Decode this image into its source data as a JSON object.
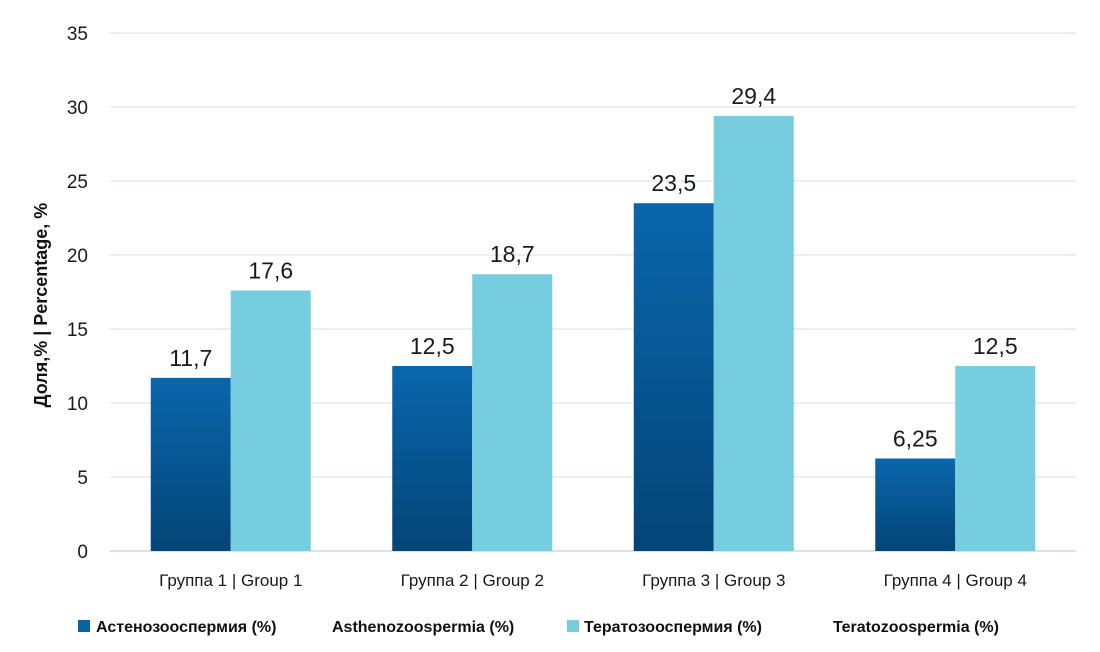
{
  "chart_data": {
    "type": "bar",
    "categories": [
      "Группа 1 | Group 1",
      "Группа 2 | Group 2",
      "Группа 3 | Group 3",
      "Группа 4 | Group 4"
    ],
    "series": [
      {
        "name": "Астенозооспермия (%) Asthenozoospermia (%)",
        "values": [
          11.7,
          12.5,
          23.5,
          6.25
        ],
        "labels": [
          "11,7",
          "12,5",
          "23,5",
          "6,25"
        ],
        "color": "#0a63a6"
      },
      {
        "name": "Тератозооспермия (%) Teratozoospermia (%)",
        "values": [
          17.6,
          18.7,
          29.4,
          12.5
        ],
        "labels": [
          "17,6",
          "18,7",
          "29,4",
          "12,5"
        ],
        "color": "#76cde0"
      }
    ],
    "title": "",
    "xlabel": "",
    "ylabel": "Доля,% | Percentage, %",
    "ylim": [
      0,
      35
    ],
    "yticks": [
      0,
      5,
      10,
      15,
      20,
      25,
      30,
      35
    ],
    "grid": true,
    "legend_position": "bottom"
  },
  "legend": {
    "items": [
      {
        "ru": "Астенозооспермия (%)",
        "en": "Asthenozoospermia (%)"
      },
      {
        "ru": "Тератозооспермия (%)",
        "en": "Teratozoospermia (%)"
      }
    ]
  }
}
